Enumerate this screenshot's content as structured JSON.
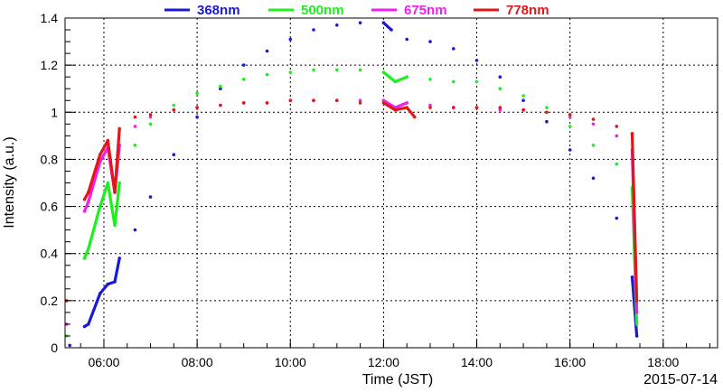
{
  "chart_data": {
    "type": "scatter",
    "title": "",
    "xlabel": "Time (JST)",
    "ylabel": "Intensity (a.u.)",
    "date_label": "2015-07-14",
    "xlim": [
      "05:10",
      "19:10"
    ],
    "ylim": [
      0,
      1.4
    ],
    "x_ticks": [
      "06:00",
      "08:00",
      "10:00",
      "12:00",
      "14:00",
      "16:00",
      "18:00"
    ],
    "y_ticks": [
      "0",
      "0.2",
      "0.4",
      "0.6",
      "0.8",
      "1",
      "1.2",
      "1.4"
    ],
    "grid": true,
    "legend_position": "top",
    "series": [
      {
        "name": "368nm",
        "color": "#1a1ad6",
        "points": [
          [
            "05:16",
            0.01
          ],
          [
            "05:35",
            0.09
          ],
          [
            "05:40",
            0.1
          ],
          [
            "05:55",
            0.23
          ],
          [
            "06:05",
            0.27
          ],
          [
            "06:14",
            0.28
          ],
          [
            "06:20",
            0.38
          ],
          [
            "06:40",
            0.5
          ],
          [
            "07:00",
            0.64
          ],
          [
            "07:30",
            0.82
          ],
          [
            "08:00",
            0.98
          ],
          [
            "08:30",
            1.1
          ],
          [
            "09:00",
            1.2
          ],
          [
            "09:30",
            1.26
          ],
          [
            "10:00",
            1.31
          ],
          [
            "10:30",
            1.35
          ],
          [
            "11:00",
            1.37
          ],
          [
            "11:30",
            1.38
          ],
          [
            "12:00",
            1.38
          ],
          [
            "12:10",
            1.35
          ],
          [
            "12:30",
            1.31
          ],
          [
            "13:00",
            1.3
          ],
          [
            "13:30",
            1.27
          ],
          [
            "14:00",
            1.22
          ],
          [
            "14:30",
            1.15
          ],
          [
            "15:00",
            1.05
          ],
          [
            "15:30",
            0.96
          ],
          [
            "16:00",
            0.84
          ],
          [
            "16:30",
            0.72
          ],
          [
            "17:00",
            0.55
          ],
          [
            "17:20",
            0.3
          ],
          [
            "17:26",
            0.05
          ]
        ]
      },
      {
        "name": "500nm",
        "color": "#1ef01e",
        "points": [
          [
            "05:12",
            0.05
          ],
          [
            "05:35",
            0.38
          ],
          [
            "05:40",
            0.42
          ],
          [
            "05:55",
            0.6
          ],
          [
            "06:05",
            0.7
          ],
          [
            "06:14",
            0.52
          ],
          [
            "06:20",
            0.7
          ],
          [
            "06:40",
            0.86
          ],
          [
            "07:00",
            0.95
          ],
          [
            "07:30",
            1.03
          ],
          [
            "08:00",
            1.08
          ],
          [
            "08:30",
            1.11
          ],
          [
            "09:00",
            1.14
          ],
          [
            "09:30",
            1.16
          ],
          [
            "10:00",
            1.17
          ],
          [
            "10:30",
            1.18
          ],
          [
            "11:00",
            1.18
          ],
          [
            "11:30",
            1.18
          ],
          [
            "12:00",
            1.17
          ],
          [
            "12:15",
            1.13
          ],
          [
            "12:30",
            1.15
          ],
          [
            "13:00",
            1.14
          ],
          [
            "13:30",
            1.13
          ],
          [
            "14:00",
            1.13
          ],
          [
            "14:30",
            1.1
          ],
          [
            "15:00",
            1.07
          ],
          [
            "15:30",
            1.02
          ],
          [
            "16:00",
            0.94
          ],
          [
            "16:30",
            0.86
          ],
          [
            "17:00",
            0.78
          ],
          [
            "17:20",
            0.68
          ],
          [
            "17:26",
            0.1
          ]
        ]
      },
      {
        "name": "675nm",
        "color": "#f01ef0",
        "points": [
          [
            "05:12",
            0.1
          ],
          [
            "05:35",
            0.58
          ],
          [
            "05:40",
            0.62
          ],
          [
            "05:55",
            0.79
          ],
          [
            "06:05",
            0.85
          ],
          [
            "06:14",
            0.66
          ],
          [
            "06:20",
            0.86
          ],
          [
            "06:40",
            0.94
          ],
          [
            "07:00",
            0.98
          ],
          [
            "07:30",
            1.01
          ],
          [
            "08:00",
            1.02
          ],
          [
            "08:30",
            1.03
          ],
          [
            "09:00",
            1.04
          ],
          [
            "09:30",
            1.04
          ],
          [
            "10:00",
            1.05
          ],
          [
            "10:30",
            1.05
          ],
          [
            "11:00",
            1.05
          ],
          [
            "11:30",
            1.05
          ],
          [
            "12:00",
            1.05
          ],
          [
            "12:15",
            1.02
          ],
          [
            "12:30",
            1.04
          ],
          [
            "13:00",
            1.03
          ],
          [
            "13:30",
            1.02
          ],
          [
            "14:00",
            1.02
          ],
          [
            "14:30",
            1.01
          ],
          [
            "15:00",
            1.01
          ],
          [
            "15:30",
            1.0
          ],
          [
            "16:00",
            0.98
          ],
          [
            "16:30",
            0.95
          ],
          [
            "17:00",
            0.9
          ],
          [
            "17:20",
            0.84
          ],
          [
            "17:26",
            0.15
          ]
        ]
      },
      {
        "name": "778nm",
        "color": "#e01818",
        "points": [
          [
            "05:12",
            0.2
          ],
          [
            "05:35",
            0.63
          ],
          [
            "05:40",
            0.66
          ],
          [
            "05:55",
            0.82
          ],
          [
            "06:05",
            0.88
          ],
          [
            "06:14",
            0.66
          ],
          [
            "06:20",
            0.93
          ],
          [
            "06:40",
            0.98
          ],
          [
            "07:00",
            0.99
          ],
          [
            "07:30",
            1.01
          ],
          [
            "08:00",
            1.02
          ],
          [
            "08:30",
            1.03
          ],
          [
            "09:00",
            1.04
          ],
          [
            "09:30",
            1.04
          ],
          [
            "10:00",
            1.05
          ],
          [
            "10:30",
            1.05
          ],
          [
            "11:00",
            1.05
          ],
          [
            "11:30",
            1.04
          ],
          [
            "12:00",
            1.04
          ],
          [
            "12:15",
            1.01
          ],
          [
            "12:30",
            1.02
          ],
          [
            "12:40",
            0.98
          ],
          [
            "13:00",
            1.02
          ],
          [
            "13:30",
            1.02
          ],
          [
            "14:00",
            1.02
          ],
          [
            "14:30",
            1.02
          ],
          [
            "15:00",
            1.01
          ],
          [
            "15:30",
            1.0
          ],
          [
            "16:00",
            0.99
          ],
          [
            "16:30",
            0.97
          ],
          [
            "17:00",
            0.94
          ],
          [
            "17:20",
            0.91
          ],
          [
            "17:26",
            0.2
          ]
        ]
      }
    ]
  }
}
